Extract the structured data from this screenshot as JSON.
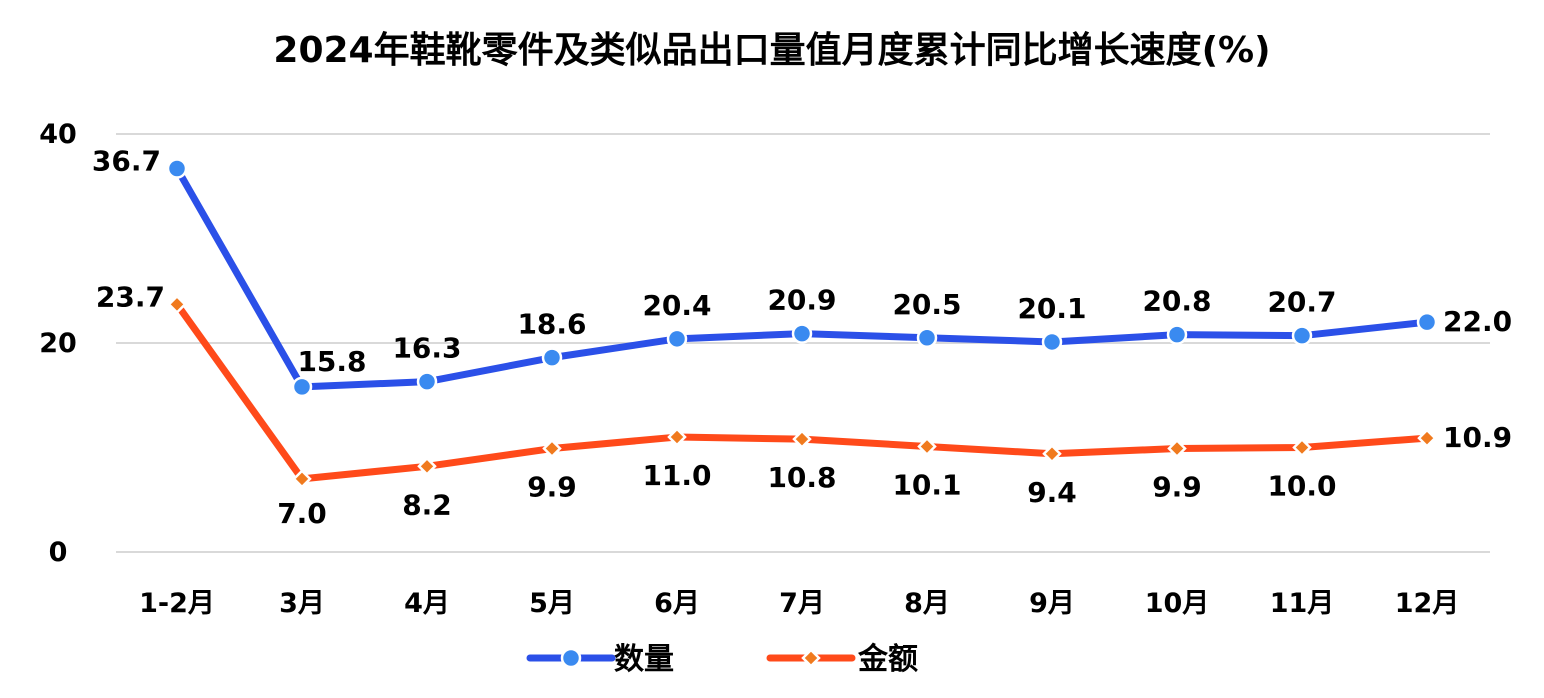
{
  "chart_data": {
    "type": "line",
    "title": "2024年鞋靴零件及类似品出口量值月度累计同比增长速度(%)",
    "categories": [
      "1-2月",
      "3月",
      "4月",
      "5月",
      "6月",
      "7月",
      "8月",
      "9月",
      "10月",
      "11月",
      "12月"
    ],
    "series": [
      {
        "name": "数量",
        "color": "#2B50E8",
        "marker": "circle",
        "marker_color": "#3A8AF0",
        "values": [
          36.7,
          15.8,
          16.3,
          18.6,
          20.4,
          20.9,
          20.5,
          20.1,
          20.8,
          20.7,
          22.0
        ],
        "labels": [
          "36.7",
          "15.8",
          "16.3",
          "18.6",
          "20.4",
          "20.9",
          "20.5",
          "20.1",
          "20.8",
          "20.7",
          "22.0"
        ]
      },
      {
        "name": "金额",
        "color": "#FF4A1A",
        "marker": "diamond",
        "marker_color": "#F07A1E",
        "values": [
          23.7,
          7.0,
          8.2,
          9.9,
          11.0,
          10.8,
          10.1,
          9.4,
          9.9,
          10.0,
          10.9
        ],
        "labels": [
          "23.7",
          "7.0",
          "8.2",
          "9.9",
          "11.0",
          "10.8",
          "10.1",
          "9.4",
          "9.9",
          "10.0",
          "10.9"
        ]
      }
    ],
    "ylim": [
      0,
      40
    ],
    "yticks": [
      0,
      20,
      40
    ],
    "ytick_labels": [
      "0",
      "20",
      "40"
    ],
    "grid": true,
    "legend_position": "bottom"
  }
}
